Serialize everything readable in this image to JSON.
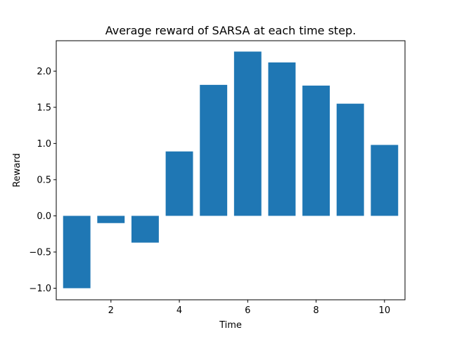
{
  "chart_data": {
    "type": "bar",
    "title": "Average reward of SARSA at each time step.",
    "xlabel": "Time",
    "ylabel": "Reward",
    "x": [
      1,
      2,
      3,
      4,
      5,
      6,
      7,
      8,
      9,
      10
    ],
    "values": [
      -1.0,
      -0.1,
      -0.37,
      0.89,
      1.81,
      2.27,
      2.12,
      1.8,
      1.55,
      0.98
    ],
    "xlim": [
      0.4,
      10.6
    ],
    "ylim": [
      -1.16,
      2.42
    ],
    "x_ticks": [
      2,
      4,
      6,
      8,
      10
    ],
    "x_tick_labels": [
      "2",
      "4",
      "6",
      "8",
      "10"
    ],
    "y_ticks": [
      -1.0,
      -0.5,
      0.0,
      0.5,
      1.0,
      1.5,
      2.0
    ],
    "y_tick_labels": [
      "−1.0",
      "−0.5",
      "0.0",
      "0.5",
      "1.0",
      "1.5",
      "2.0"
    ],
    "bar_color": "#1f77b4",
    "grid": false
  }
}
